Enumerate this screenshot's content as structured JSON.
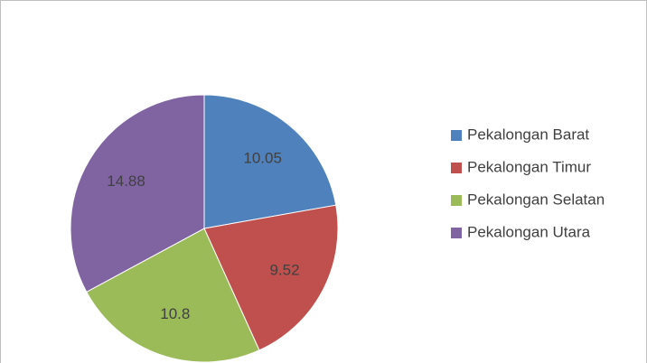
{
  "chart_data": {
    "type": "pie",
    "categories": [
      "Pekalongan Barat",
      "Pekalongan Timur",
      "Pekalongan Selatan",
      "Pekalongan Utara"
    ],
    "values": [
      10.05,
      9.52,
      10.8,
      14.88
    ],
    "colors": [
      "#4f81bd",
      "#c0504d",
      "#9bbb59",
      "#8064a2"
    ],
    "legend": "right"
  }
}
